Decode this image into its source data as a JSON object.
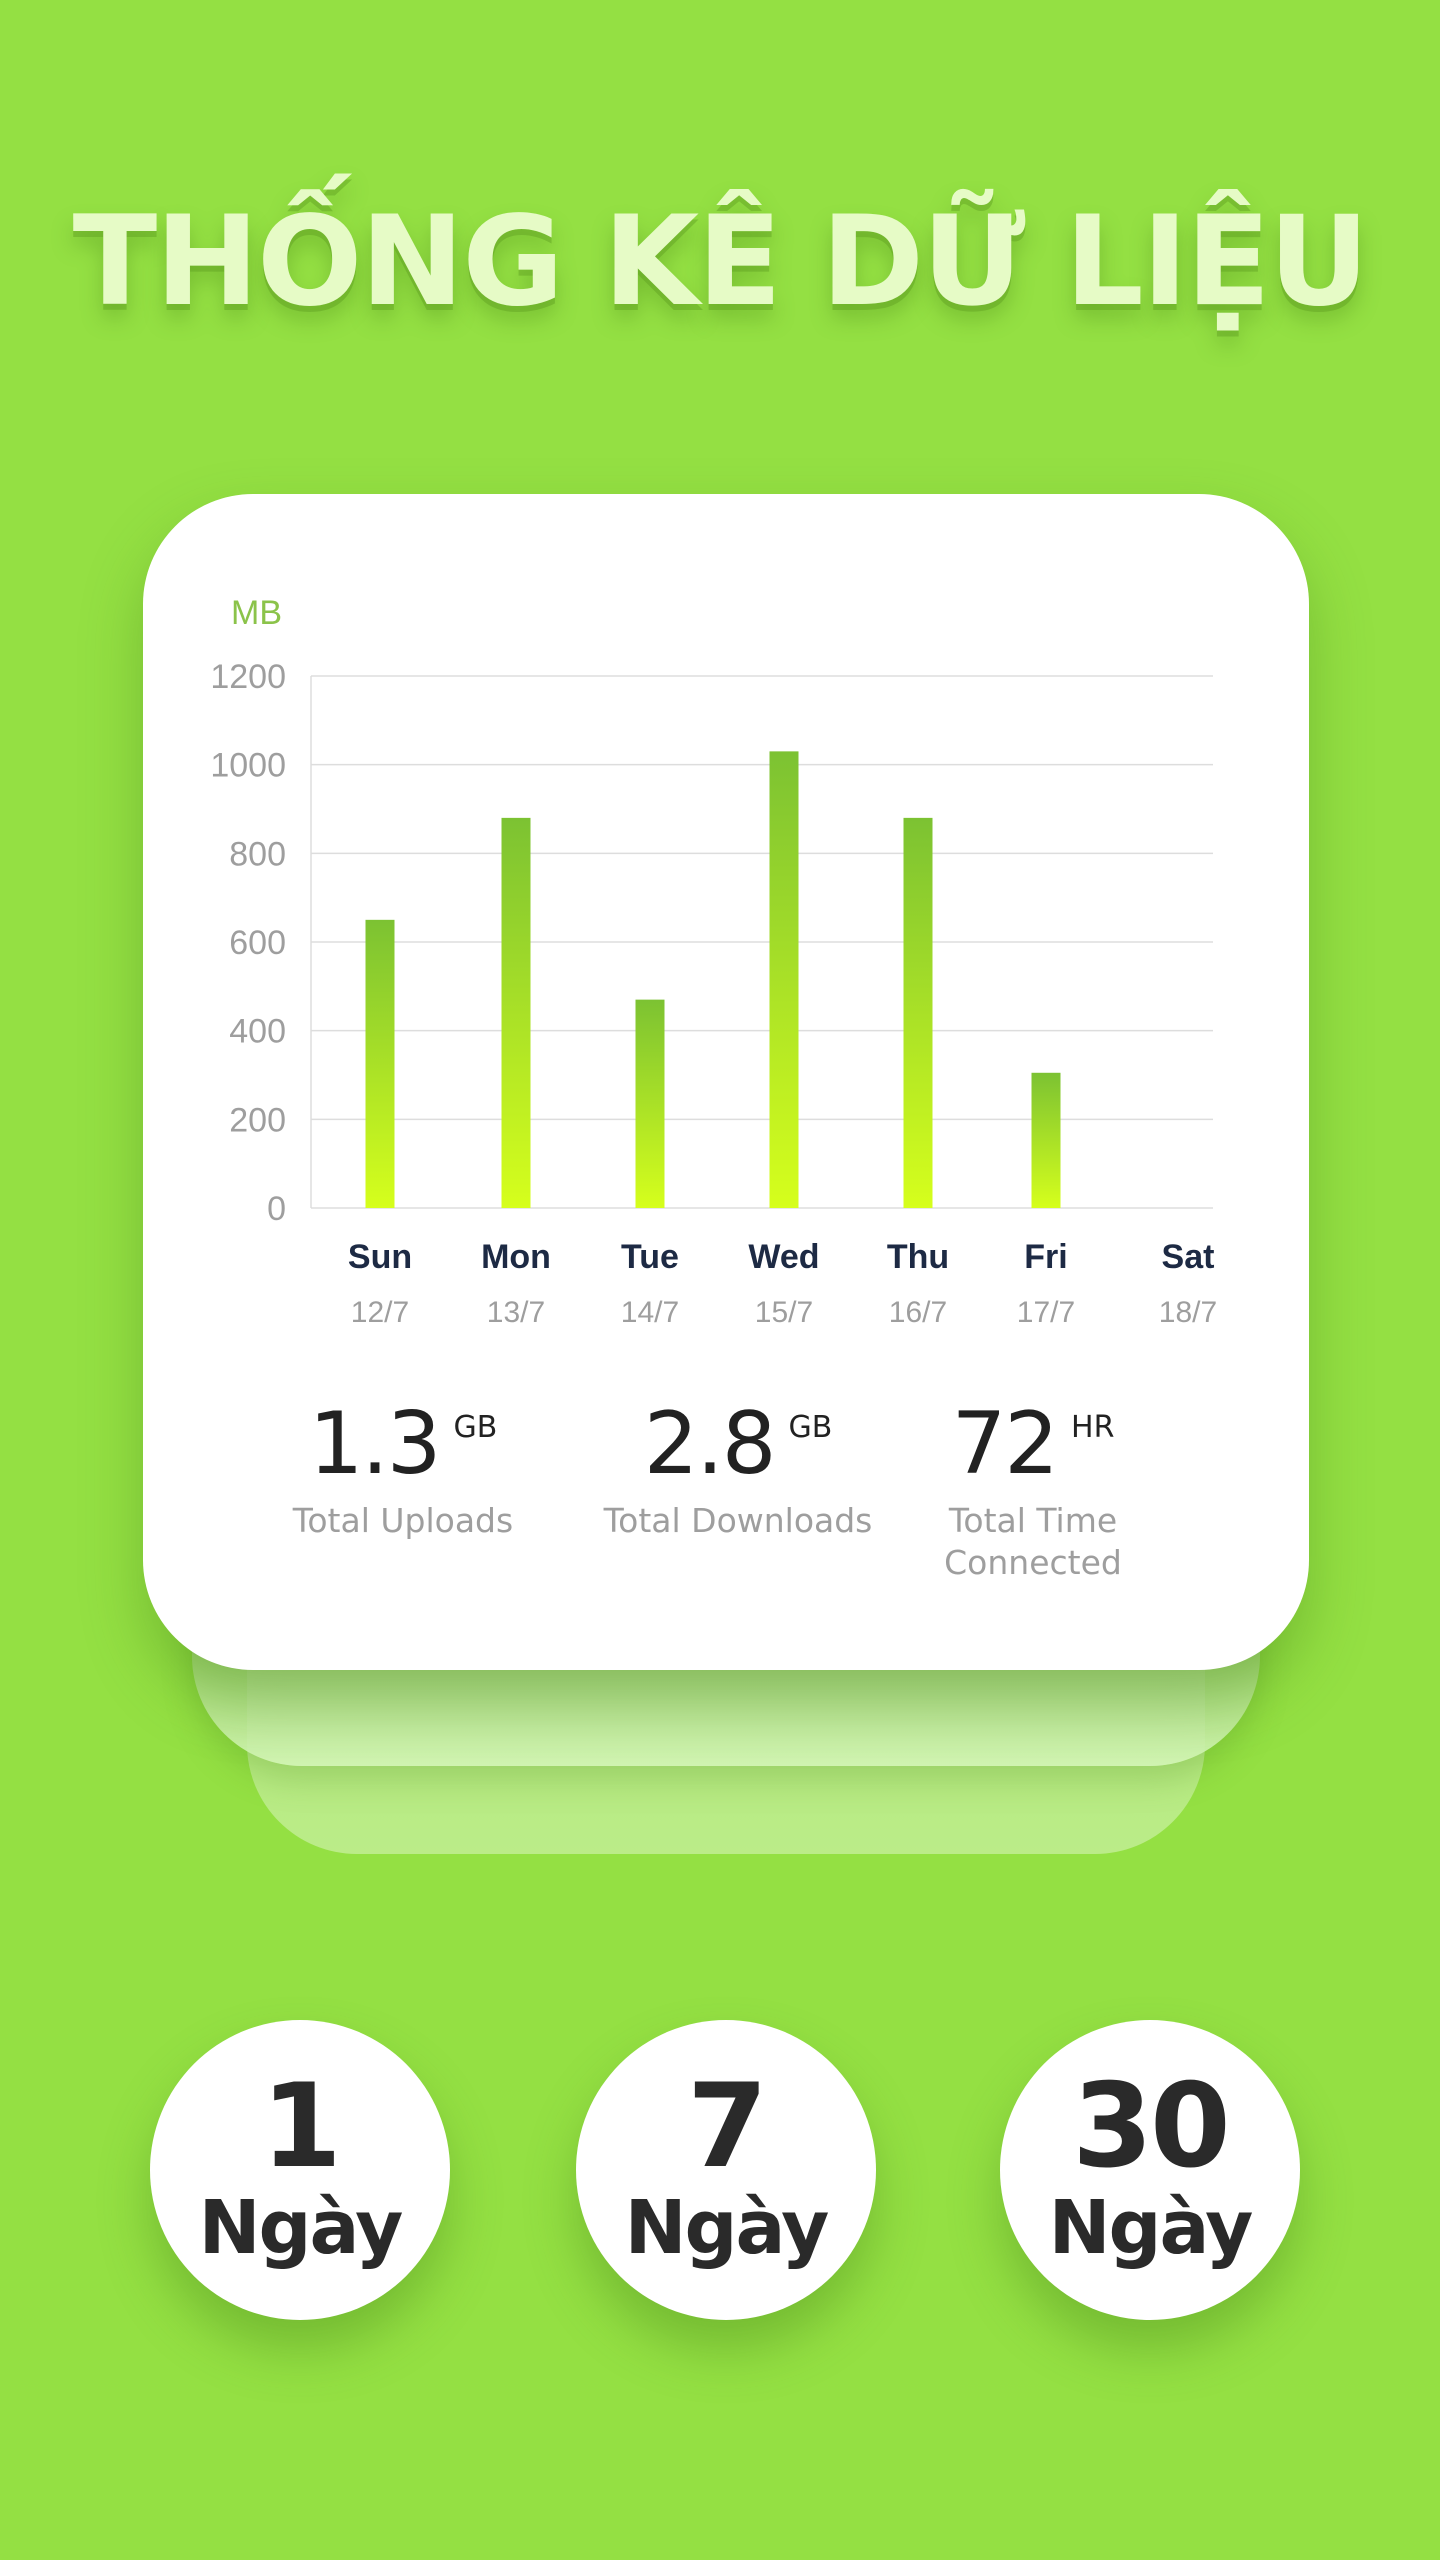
{
  "headline": "THỐNG KÊ DỮ LIỆU",
  "chart_data": {
    "type": "bar",
    "ylabel": "MB",
    "ylim": [
      0,
      1200
    ],
    "yticks": [
      0,
      200,
      400,
      600,
      800,
      1000,
      1200
    ],
    "categories": [
      "Sun",
      "Mon",
      "Tue",
      "Wed",
      "Thu",
      "Fri",
      "Sat"
    ],
    "dates": [
      "12/7",
      "13/7",
      "14/7",
      "15/7",
      "16/7",
      "17/7",
      "18/7"
    ],
    "values": [
      650,
      880,
      470,
      1030,
      880,
      305,
      0
    ],
    "grid": true,
    "colors": {
      "bar_top": "#7cc232",
      "bar_bottom": "#d6ff1c",
      "grid": "#dddddd",
      "axis_text": "#9e9e9e",
      "day_text": "#1d2a44"
    }
  },
  "stats": [
    {
      "value": "1.3",
      "unit": "GB",
      "label": "Total Uploads"
    },
    {
      "value": "2.8",
      "unit": "GB",
      "label": "Total Downloads"
    },
    {
      "value": "72",
      "unit": "HR",
      "label": "Total Time Connected"
    }
  ],
  "ranges": [
    {
      "number": "1",
      "unit": "Ngày"
    },
    {
      "number": "7",
      "unit": "Ngày"
    },
    {
      "number": "30",
      "unit": "Ngày"
    }
  ],
  "colors": {
    "background": "#94e043",
    "card": "#ffffff",
    "accent": "#8bc34a"
  }
}
